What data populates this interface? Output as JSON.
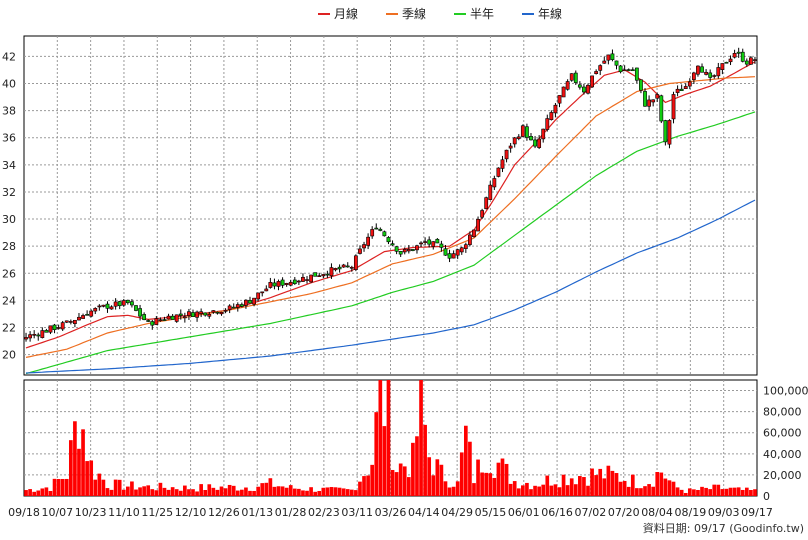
{
  "chart_data": [
    {
      "type": "candlestick",
      "legend": [
        "月線",
        "季線",
        "半年",
        "年線"
      ],
      "ylim": [
        18.5,
        43.5
      ],
      "yticks": [
        20,
        22,
        24,
        26,
        28,
        30,
        32,
        34,
        36,
        38,
        40,
        42
      ],
      "grid": true,
      "legend_position": "top-center",
      "x_tick_labels": [
        "09/18",
        "10/07",
        "10/23",
        "11/10",
        "11/25",
        "12/10",
        "12/26",
        "01/13",
        "01/28",
        "02/23",
        "03/11",
        "03/26",
        "04/14",
        "04/29",
        "05/15",
        "06/01",
        "06/16",
        "07/02",
        "07/20",
        "08/04",
        "08/19",
        "09/03",
        "09/17"
      ],
      "price_anchors": [
        [
          0,
          21.3
        ],
        [
          5,
          21.8
        ],
        [
          10,
          22.3
        ],
        [
          15,
          23.1
        ],
        [
          20,
          23.6
        ],
        [
          25,
          23.8
        ],
        [
          30,
          22.3
        ],
        [
          35,
          22.8
        ],
        [
          40,
          23.0
        ],
        [
          45,
          23.2
        ],
        [
          50,
          23.4
        ],
        [
          55,
          24.0
        ],
        [
          60,
          25.1
        ],
        [
          65,
          25.4
        ],
        [
          70,
          25.8
        ],
        [
          75,
          26.2
        ],
        [
          80,
          26.5
        ],
        [
          83,
          28.2
        ],
        [
          86,
          29.5
        ],
        [
          89,
          28.5
        ],
        [
          92,
          27.5
        ],
        [
          95,
          27.8
        ],
        [
          98,
          28.3
        ],
        [
          101,
          28.0
        ],
        [
          104,
          27.3
        ],
        [
          107,
          27.8
        ],
        [
          110,
          29.3
        ],
        [
          113,
          31.5
        ],
        [
          116,
          33.8
        ],
        [
          119,
          35.5
        ],
        [
          122,
          36.7
        ],
        [
          125,
          35.2
        ],
        [
          128,
          37.2
        ],
        [
          131,
          39.0
        ],
        [
          134,
          40.5
        ],
        [
          137,
          39.5
        ],
        [
          140,
          41.0
        ],
        [
          143,
          42.0
        ],
        [
          146,
          41.0
        ],
        [
          149,
          41.0
        ],
        [
          152,
          38.5
        ],
        [
          155,
          39.0
        ],
        [
          157,
          35.5
        ],
        [
          159,
          39.2
        ],
        [
          162,
          39.8
        ],
        [
          165,
          41.5
        ],
        [
          168,
          40.2
        ],
        [
          171,
          41.3
        ],
        [
          174,
          42.3
        ],
        [
          177,
          41.6
        ],
        [
          179,
          41.8
        ]
      ],
      "series": [
        {
          "name": "月線",
          "color": "#dd2222",
          "anchors": [
            [
              0,
              20.5
            ],
            [
              8,
              21.3
            ],
            [
              15,
              22.2
            ],
            [
              20,
              22.8
            ],
            [
              25,
              22.9
            ],
            [
              30,
              22.6
            ],
            [
              40,
              22.9
            ],
            [
              50,
              23.3
            ],
            [
              60,
              24.2
            ],
            [
              70,
              25.3
            ],
            [
              80,
              26.2
            ],
            [
              88,
              27.6
            ],
            [
              95,
              27.9
            ],
            [
              104,
              28.0
            ],
            [
              110,
              29.2
            ],
            [
              115,
              31.5
            ],
            [
              120,
              34.0
            ],
            [
              125,
              35.6
            ],
            [
              130,
              37.3
            ],
            [
              136,
              39.0
            ],
            [
              142,
              40.6
            ],
            [
              147,
              41.0
            ],
            [
              152,
              40.1
            ],
            [
              157,
              38.6
            ],
            [
              162,
              39.2
            ],
            [
              168,
              39.8
            ],
            [
              173,
              40.6
            ],
            [
              179,
              41.6
            ]
          ]
        },
        {
          "name": "季線",
          "color": "#ee6f22",
          "anchors": [
            [
              0,
              19.8
            ],
            [
              10,
              20.4
            ],
            [
              20,
              21.6
            ],
            [
              30,
              22.3
            ],
            [
              40,
              22.8
            ],
            [
              50,
              23.3
            ],
            [
              60,
              23.9
            ],
            [
              70,
              24.5
            ],
            [
              80,
              25.3
            ],
            [
              90,
              26.7
            ],
            [
              100,
              27.4
            ],
            [
              105,
              28.0
            ],
            [
              110,
              28.6
            ],
            [
              120,
              31.5
            ],
            [
              130,
              34.6
            ],
            [
              140,
              37.6
            ],
            [
              150,
              39.4
            ],
            [
              158,
              40.0
            ],
            [
              165,
              40.2
            ],
            [
              172,
              40.4
            ],
            [
              179,
              40.5
            ]
          ]
        },
        {
          "name": "半年",
          "color": "#22cc22",
          "anchors": [
            [
              0,
              18.6
            ],
            [
              20,
              20.3
            ],
            [
              40,
              21.3
            ],
            [
              60,
              22.3
            ],
            [
              80,
              23.6
            ],
            [
              90,
              24.6
            ],
            [
              100,
              25.4
            ],
            [
              110,
              26.6
            ],
            [
              120,
              28.8
            ],
            [
              130,
              31.0
            ],
            [
              140,
              33.2
            ],
            [
              150,
              35.0
            ],
            [
              160,
              36.1
            ],
            [
              170,
              37.0
            ],
            [
              179,
              37.9
            ]
          ]
        },
        {
          "name": "年線",
          "color": "#2266cc",
          "anchors": [
            [
              0,
              18.65
            ],
            [
              20,
              18.95
            ],
            [
              40,
              19.35
            ],
            [
              60,
              19.9
            ],
            [
              80,
              20.7
            ],
            [
              100,
              21.6
            ],
            [
              110,
              22.2
            ],
            [
              120,
              23.3
            ],
            [
              130,
              24.6
            ],
            [
              140,
              26.1
            ],
            [
              150,
              27.5
            ],
            [
              160,
              28.6
            ],
            [
              170,
              30.0
            ],
            [
              179,
              31.4
            ]
          ]
        }
      ]
    },
    {
      "type": "bar",
      "ylim": [
        0,
        110000
      ],
      "yticks": [
        0,
        20000,
        40000,
        60000,
        80000,
        100000
      ],
      "ytick_labels": [
        "0",
        "20,000",
        "40,000",
        "60,000",
        "80,000",
        "100,000"
      ],
      "bar_color": "#ff0000",
      "volume_anchors": [
        [
          0,
          6000
        ],
        [
          6,
          9000
        ],
        [
          10,
          22000
        ],
        [
          13,
          85000
        ],
        [
          16,
          30000
        ],
        [
          20,
          12000
        ],
        [
          25,
          10000
        ],
        [
          30,
          9000
        ],
        [
          40,
          8000
        ],
        [
          55,
          9000
        ],
        [
          60,
          12000
        ],
        [
          65,
          8000
        ],
        [
          70,
          7000
        ],
        [
          75,
          6000
        ],
        [
          80,
          6000
        ],
        [
          85,
          35000
        ],
        [
          87,
          105000
        ],
        [
          89,
          80000
        ],
        [
          91,
          28000
        ],
        [
          95,
          35000
        ],
        [
          97,
          90000
        ],
        [
          99,
          40000
        ],
        [
          102,
          22000
        ],
        [
          106,
          12000
        ],
        [
          108,
          60000
        ],
        [
          110,
          18000
        ],
        [
          113,
          45000
        ],
        [
          116,
          32000
        ],
        [
          120,
          15000
        ],
        [
          125,
          12000
        ],
        [
          130,
          18000
        ],
        [
          135,
          20000
        ],
        [
          140,
          22000
        ],
        [
          145,
          20000
        ],
        [
          150,
          14000
        ],
        [
          153,
          15000
        ],
        [
          156,
          25000
        ],
        [
          159,
          10000
        ],
        [
          162,
          5000
        ],
        [
          165,
          6000
        ],
        [
          170,
          8000
        ],
        [
          175,
          6000
        ],
        [
          179,
          5000
        ]
      ]
    }
  ],
  "footer": {
    "credit": "資料日期: 09/17 (Goodinfo.tw)"
  }
}
